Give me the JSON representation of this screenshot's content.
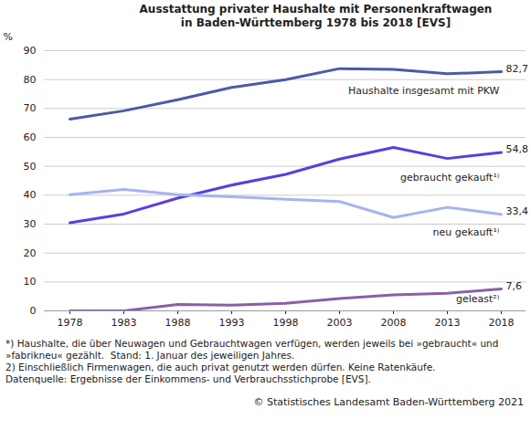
{
  "chart_data": {
    "type": "line",
    "title": "Ausstattung privater Haushalte mit Personenkraftwagen",
    "subtitle": "in Baden-Württemberg 1978 bis 2018 [EVS]",
    "y_label": "%",
    "categories": [
      "1978",
      "1983",
      "1988",
      "1993",
      "1998",
      "2003",
      "2008",
      "2013",
      "2018"
    ],
    "series": [
      {
        "name": "Haushalte insgesamt mit PKW",
        "color": "#4c5aa5",
        "values": [
          66.3,
          69.2,
          73.0,
          77.3,
          80.0,
          83.8,
          83.5,
          82.0,
          82.7
        ],
        "value_labels": [
          null,
          null,
          null,
          null,
          null,
          null,
          null,
          null,
          "82,7"
        ]
      },
      {
        "name": "gebraucht gekauft¹⁾",
        "color": "#5a3ee0",
        "values": [
          30.5,
          33.5,
          39.0,
          43.5,
          47.2,
          52.5,
          56.5,
          52.7,
          54.8
        ],
        "value_labels": [
          null,
          null,
          null,
          null,
          null,
          null,
          null,
          null,
          "54,8"
        ]
      },
      {
        "name": "neu gekauft¹⁾",
        "color": "#a7b3ef",
        "values": [
          40.2,
          42.0,
          40.2,
          39.5,
          38.6,
          37.8,
          32.3,
          35.8,
          33.4
        ],
        "value_labels": [
          null,
          null,
          null,
          null,
          null,
          null,
          null,
          null,
          "33,4"
        ]
      },
      {
        "name": "geleast²⁾",
        "color": "#8a5fa8",
        "values": [
          0,
          0,
          2.2,
          2.0,
          2.6,
          4.3,
          5.5,
          6.1,
          7.6
        ],
        "value_labels": [
          null,
          null,
          null,
          null,
          null,
          null,
          null,
          null,
          "7,6"
        ]
      }
    ],
    "ylim": [
      0,
      90
    ],
    "yticks": [
      0,
      10,
      20,
      30,
      40,
      50,
      60,
      70,
      80,
      90
    ],
    "grid": true,
    "data_labels": true,
    "notes": [
      "*) Haushalte, die über Neuwagen und Gebrauchtwagen verfügen, werden jeweils bei »gebraucht« und",
      "»fabrikneu« gezählt.  Stand: 1. Januar des jeweiligen Jahres.",
      "2) Einschließlich Firmenwagen, die auch privat genutzt werden dürfen. Keine Ratenkäufe.",
      "Datenquelle: Ergebnisse der Einkommens- und Verbrauchsstichprobe [EVS]."
    ],
    "source": "© Statistisches Landesamt Baden-Württemberg 2021"
  }
}
